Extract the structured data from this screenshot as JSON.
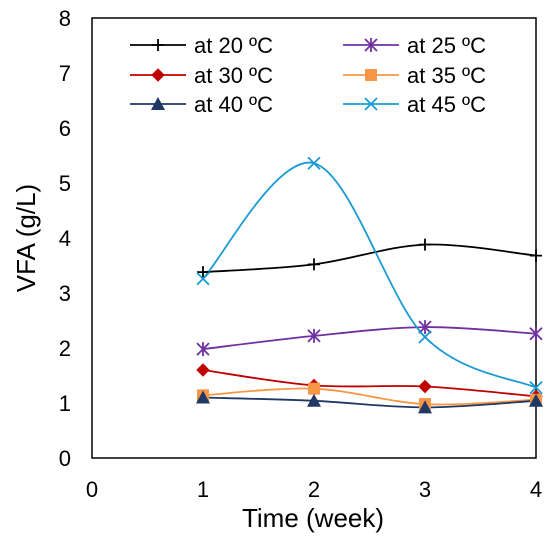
{
  "chart_data": {
    "type": "line",
    "title": "",
    "xlabel": "Time (week)",
    "ylabel": "VFA (g/L)",
    "xlim": [
      0,
      4
    ],
    "ylim": [
      0,
      8
    ],
    "x_ticks": [
      "0",
      "1",
      "2",
      "3",
      "4"
    ],
    "y_ticks": [
      "0",
      "1",
      "2",
      "3",
      "4",
      "5",
      "6",
      "7",
      "8"
    ],
    "grid": false,
    "legend_position": "top",
    "curve": "smooth",
    "x": [
      1,
      2,
      3,
      4
    ],
    "series": [
      {
        "name": "at 20 ºC",
        "values": [
          3.38,
          3.52,
          3.88,
          3.68
        ],
        "color": "#000000",
        "marker": "plus"
      },
      {
        "name": "at 25 ºC",
        "values": [
          1.98,
          2.22,
          2.38,
          2.26
        ],
        "color": "#7030A0",
        "marker": "asterisk"
      },
      {
        "name": "at 30 ºC",
        "values": [
          1.6,
          1.32,
          1.3,
          1.12
        ],
        "color": "#C00000",
        "marker": "diamond"
      },
      {
        "name": "at 35 ºC",
        "values": [
          1.14,
          1.26,
          0.98,
          1.06
        ],
        "color": "#F79646",
        "marker": "square"
      },
      {
        "name": "at 40 ºC",
        "values": [
          1.1,
          1.04,
          0.92,
          1.04
        ],
        "color": "#1F3864",
        "marker": "triangle"
      },
      {
        "name": "at 45 ºC",
        "values": [
          3.26,
          5.36,
          2.2,
          1.28
        ],
        "color": "#1B9BD3",
        "marker": "x"
      }
    ]
  }
}
